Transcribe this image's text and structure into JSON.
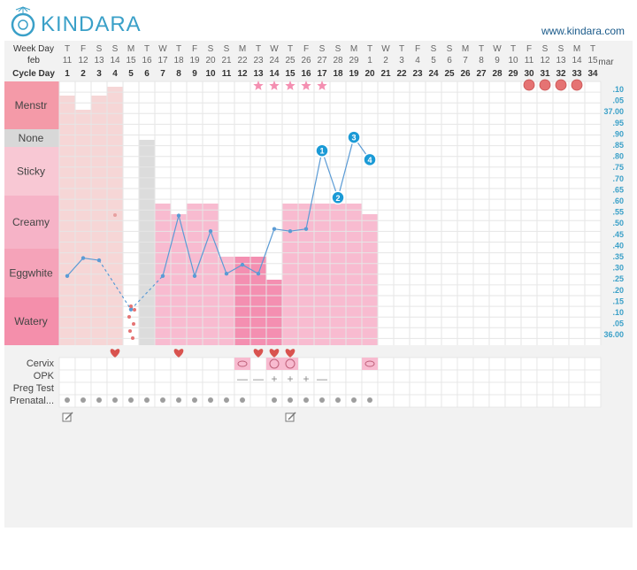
{
  "header": {
    "logo_text": "KINDARA",
    "site_url": "www.kindara.com"
  },
  "colors": {
    "accent": "#3aa0c8",
    "temp_line": "#5b9bd5",
    "fluid_dark": "#f48fb1",
    "fluid_mid": "#f8bbd0",
    "fluid_light": "#f3d7d7",
    "heart": "#d9534f",
    "period_dot": "#e57373",
    "star": "#f48fb1"
  },
  "labels": {
    "week_day": "Week Day",
    "feb": "feb",
    "cycle_day": "Cycle Day",
    "mar": "mar"
  },
  "chart_data": {
    "type": "line",
    "week_days": [
      "T",
      "F",
      "S",
      "S",
      "M",
      "T",
      "W",
      "T",
      "F",
      "S",
      "S",
      "M",
      "T",
      "W",
      "T",
      "F",
      "S",
      "S",
      "M",
      "T",
      "W",
      "T",
      "F",
      "S",
      "S",
      "M",
      "T",
      "W",
      "T",
      "F",
      "S",
      "S",
      "M",
      "T"
    ],
    "dates": [
      "11",
      "12",
      "13",
      "14",
      "15",
      "16",
      "17",
      "18",
      "19",
      "20",
      "21",
      "22",
      "23",
      "24",
      "25",
      "26",
      "27",
      "28",
      "29",
      "1",
      "2",
      "3",
      "4",
      "5",
      "6",
      "7",
      "8",
      "9",
      "10",
      "11",
      "12",
      "13",
      "14",
      "15"
    ],
    "cycle_days": [
      "1",
      "2",
      "3",
      "4",
      "5",
      "6",
      "7",
      "8",
      "9",
      "10",
      "11",
      "12",
      "13",
      "14",
      "15",
      "16",
      "17",
      "18",
      "19",
      "20",
      "21",
      "22",
      "23",
      "24",
      "25",
      "26",
      "27",
      "28",
      "29",
      "30",
      "31",
      "32",
      "33",
      "34"
    ],
    "fluid_levels": [
      "Menstr",
      "None",
      "Sticky",
      "Creamy",
      "Eggwhite",
      "Watery"
    ],
    "temp_ticks": [
      ".10",
      ".05",
      "37.00",
      ".95",
      ".90",
      ".85",
      ".80",
      ".75",
      ".70",
      ".65",
      ".60",
      ".55",
      ".50",
      ".45",
      ".40",
      ".35",
      ".30",
      ".25",
      ".20",
      ".15",
      ".10",
      ".05",
      "36.00"
    ],
    "ylim": [
      36.0,
      37.1
    ],
    "temperature": [
      36.27,
      36.35,
      36.34,
      null,
      36.12,
      null,
      36.27,
      36.54,
      36.27,
      36.47,
      36.28,
      36.32,
      36.28,
      36.48,
      36.47,
      36.48,
      36.83,
      36.62,
      36.89,
      36.79,
      null,
      null,
      null,
      null,
      null,
      null,
      null,
      null,
      null,
      null,
      null,
      null,
      null,
      null
    ],
    "temp_markers": [
      {
        "label": "1",
        "day": 17
      },
      {
        "label": "2",
        "day": 18
      },
      {
        "label": "3",
        "day": 19
      },
      {
        "label": "4",
        "day": 20
      }
    ],
    "menstruation_heavy": [
      1,
      2,
      3,
      4
    ],
    "spotting": [
      5
    ],
    "period_dots_next": [
      30,
      31,
      32,
      33
    ],
    "stars": [
      13,
      14,
      15,
      16,
      17
    ],
    "hearts": [
      4,
      8,
      13,
      14,
      15
    ],
    "rows": {
      "cervix": "Cervix",
      "opk": "OPK",
      "preg_test": "Preg Test",
      "prenatal": "Prenatal..."
    },
    "opk": [
      {
        "day": 12,
        "value": "—"
      },
      {
        "day": 13,
        "value": "—"
      },
      {
        "day": 14,
        "value": "+"
      },
      {
        "day": 15,
        "value": "+"
      },
      {
        "day": 16,
        "value": "+"
      },
      {
        "day": 17,
        "value": "—"
      }
    ],
    "cervix_days": [
      12,
      14,
      15,
      20
    ],
    "prenatal_days": [
      1,
      2,
      3,
      4,
      5,
      6,
      7,
      8,
      9,
      10,
      11,
      12,
      14,
      15,
      16,
      17,
      18,
      19,
      20
    ],
    "note_days": [
      1,
      15
    ]
  }
}
